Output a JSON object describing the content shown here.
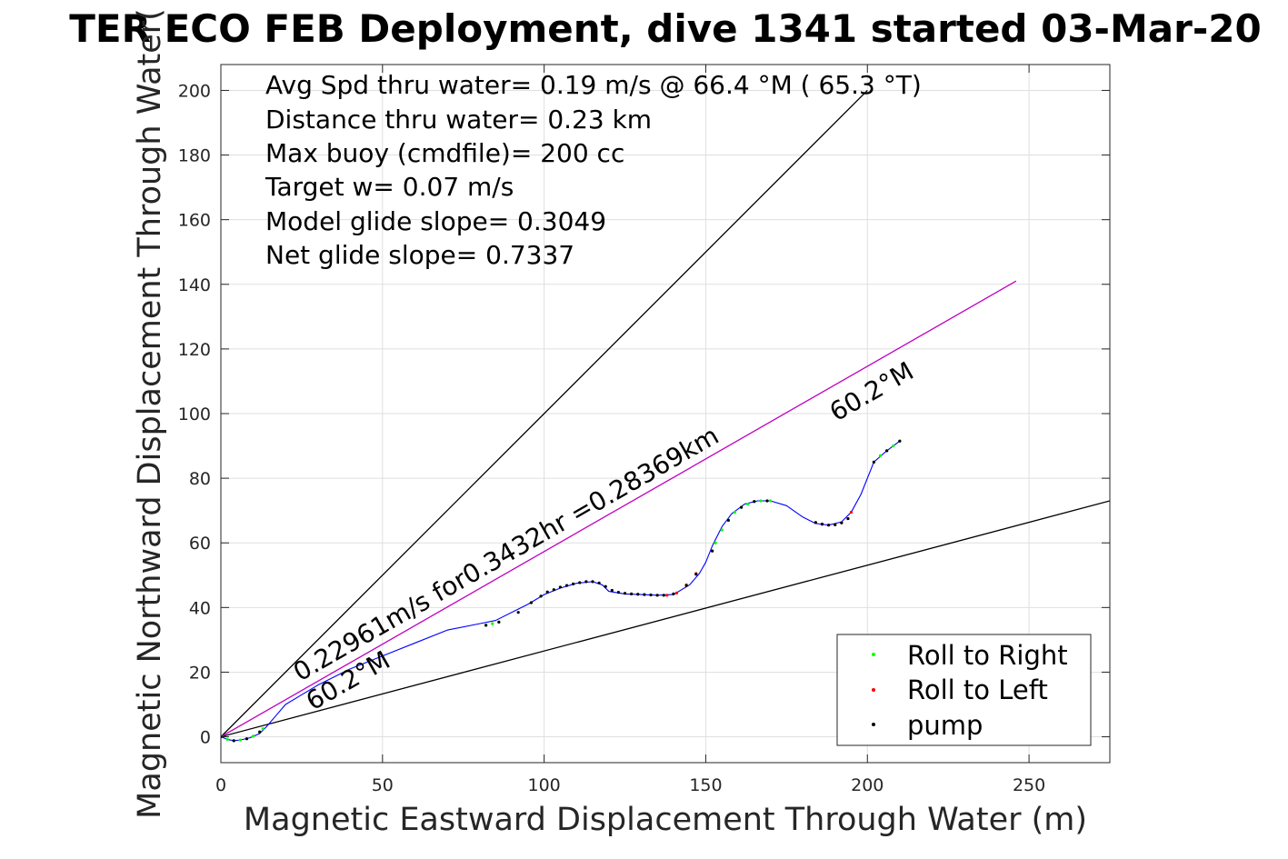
{
  "chart_data": {
    "type": "line",
    "title": "TER ECO FEB Deployment, dive 1341 started 03-Mar-20",
    "xlabel": "Magnetic Eastward Displacement Through Water (m)",
    "ylabel": "Magnetic Northward Displacement Through Water(",
    "xlim": [
      0,
      275
    ],
    "ylim": [
      -8,
      208
    ],
    "xticks": [
      0,
      50,
      100,
      150,
      200,
      250
    ],
    "yticks": [
      0,
      20,
      40,
      60,
      80,
      100,
      120,
      140,
      160,
      180,
      200
    ],
    "grid": true,
    "stats": [
      "Avg Spd thru water=  0.19 m/s @  66.4 °M ( 65.3 °T)",
      "Distance thru water=  0.23 km",
      "Max buoy (cmdfile)= 200 cc",
      "Target w= 0.07 m/s",
      "Model glide slope= 0.3049",
      "Net glide slope= 0.7337"
    ],
    "annotations": {
      "speed_line": "0.22961m/s for0.3432hr =0.28369km",
      "heading_low": "60.2°M",
      "heading_high": "60.2°M"
    },
    "reference_lines": [
      {
        "name": "upper",
        "color": "#000000",
        "x": [
          0,
          200
        ],
        "y": [
          0,
          200
        ]
      },
      {
        "name": "lower",
        "color": "#000000",
        "x": [
          0,
          275
        ],
        "y": [
          0,
          73
        ]
      },
      {
        "name": "current",
        "color": "#bf00bf",
        "x": [
          0,
          246
        ],
        "y": [
          0,
          141
        ]
      }
    ],
    "track": {
      "color": "#0000ff",
      "x": [
        0,
        2,
        4,
        6,
        9,
        12,
        14,
        17,
        20,
        25,
        30,
        40,
        50,
        60,
        70,
        80,
        85,
        90,
        95,
        100,
        105,
        110,
        115,
        118,
        120,
        125,
        130,
        135,
        140,
        145,
        148,
        150,
        152,
        155,
        158,
        162,
        166,
        170,
        175,
        180,
        184,
        188,
        192,
        195,
        198,
        202,
        206,
        210
      ],
      "y": [
        0,
        -0.8,
        -1.2,
        -1,
        -0.3,
        1,
        3,
        6.5,
        10,
        13,
        16,
        21,
        25,
        29,
        33,
        35,
        36,
        38.5,
        41,
        44,
        46,
        47.5,
        48,
        47,
        45,
        44.2,
        44,
        43.8,
        44,
        47,
        50.5,
        54,
        59,
        65,
        69,
        72,
        73,
        73,
        71.5,
        68,
        66,
        65.5,
        66.5,
        69.5,
        75,
        85,
        88.5,
        91.5
      ]
    },
    "series": [
      {
        "name": "Roll to Right",
        "color": "#00ff00",
        "x": [
          0,
          2,
          4,
          6,
          8,
          10,
          12,
          13,
          82,
          84,
          86,
          153,
          155,
          157,
          159,
          161,
          163,
          165,
          167,
          170,
          202,
          204,
          206,
          208,
          210
        ],
        "y": [
          0,
          -0.8,
          -1.2,
          -1,
          -0.6,
          0.2,
          1.5,
          2.5,
          34.5,
          35,
          35.5,
          60,
          64,
          67,
          69.5,
          71,
          72,
          72.8,
          73,
          73,
          85,
          87,
          88.5,
          90,
          91.5
        ]
      },
      {
        "name": "Roll to Left",
        "color": "#ff0000",
        "x": [
          138,
          141,
          144,
          147,
          152,
          184,
          186,
          188,
          190,
          192,
          194,
          195
        ],
        "y": [
          43.8,
          44.5,
          47,
          50.5,
          57.5,
          66.3,
          65.8,
          65.5,
          65.6,
          66.2,
          67.5,
          69.5
        ]
      },
      {
        "name": "pump",
        "color": "#000000",
        "x": [
          0,
          4,
          8,
          12,
          82,
          86,
          92,
          96,
          99,
          101,
          103,
          105,
          107,
          109,
          111,
          113,
          115,
          117,
          119,
          121,
          123,
          125,
          127,
          129,
          131,
          133,
          135,
          137,
          140,
          144,
          147,
          152,
          157,
          161,
          165,
          169,
          184,
          186,
          188,
          190,
          192,
          194,
          202,
          206,
          210
        ],
        "y": [
          0,
          -1.2,
          -0.6,
          1.5,
          34.5,
          35.5,
          38.5,
          41.5,
          43.5,
          44.8,
          45.5,
          46.3,
          46.8,
          47.3,
          47.7,
          48,
          48,
          47.6,
          46.5,
          45.3,
          44.7,
          44.4,
          44.2,
          44.1,
          44,
          43.9,
          43.8,
          43.8,
          44.2,
          46.8,
          50.3,
          57.5,
          67,
          71,
          72.8,
          73,
          66.3,
          65.8,
          65.5,
          65.6,
          66.2,
          67.5,
          85,
          88.5,
          91.5
        ]
      }
    ],
    "legend_position": "bottom-right"
  }
}
